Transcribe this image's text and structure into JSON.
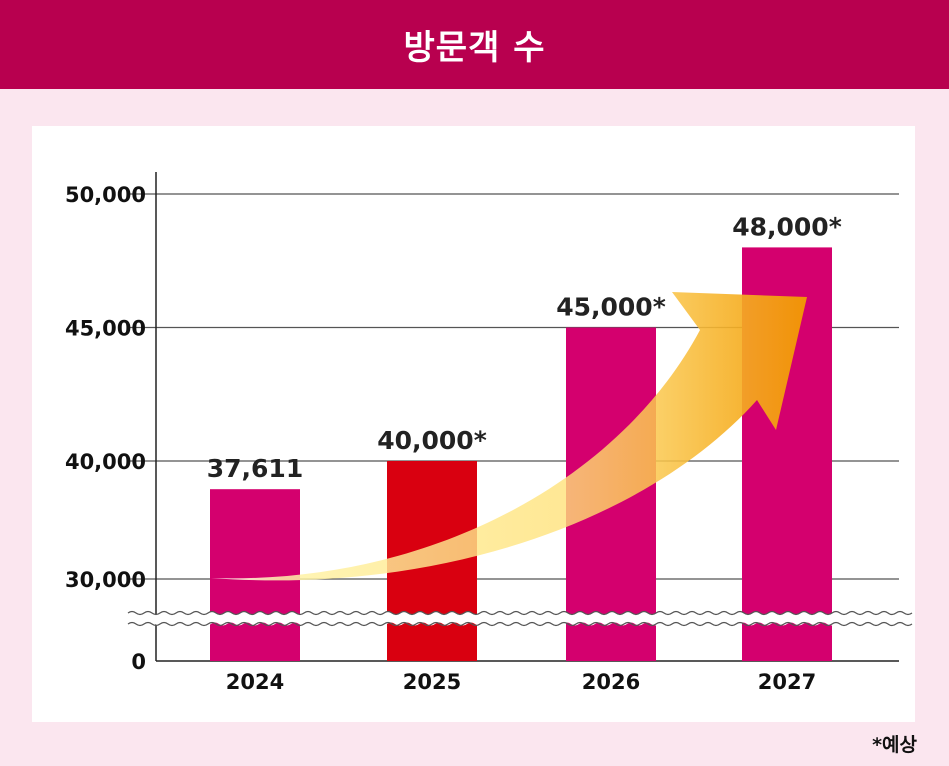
{
  "header": {
    "title": "방문객 수"
  },
  "footnote": "*예상",
  "colors": {
    "header": "#b8004f",
    "background": "#fbe6ef",
    "bar": "#d4006e",
    "highlight_bar": "#d90010",
    "arrow_start": "#ffffff",
    "arrow_end": "#f29a00"
  },
  "chart_data": {
    "type": "bar",
    "title": "방문객 수",
    "categories": [
      "2024",
      "2025",
      "2026",
      "2027"
    ],
    "series": [
      {
        "values": [
          37611,
          40000,
          45000,
          48000
        ]
      }
    ],
    "data_labels": [
      "37,611",
      "40,000*",
      "45,000*",
      "48,000*"
    ],
    "highlight_index": 1,
    "y_ticks": [
      {
        "value": 0,
        "label": "0"
      },
      {
        "value": 30000,
        "label": "30,000"
      },
      {
        "value": 40000,
        "label": "40,000"
      },
      {
        "value": 45000,
        "label": "45,000"
      },
      {
        "value": 50000,
        "label": "50,000"
      }
    ],
    "ylim": [
      0,
      50000
    ],
    "axis_break": "between 0 and 30,000",
    "grid": true,
    "annotations": [
      "growth arrow from 2024 to 2027"
    ]
  }
}
